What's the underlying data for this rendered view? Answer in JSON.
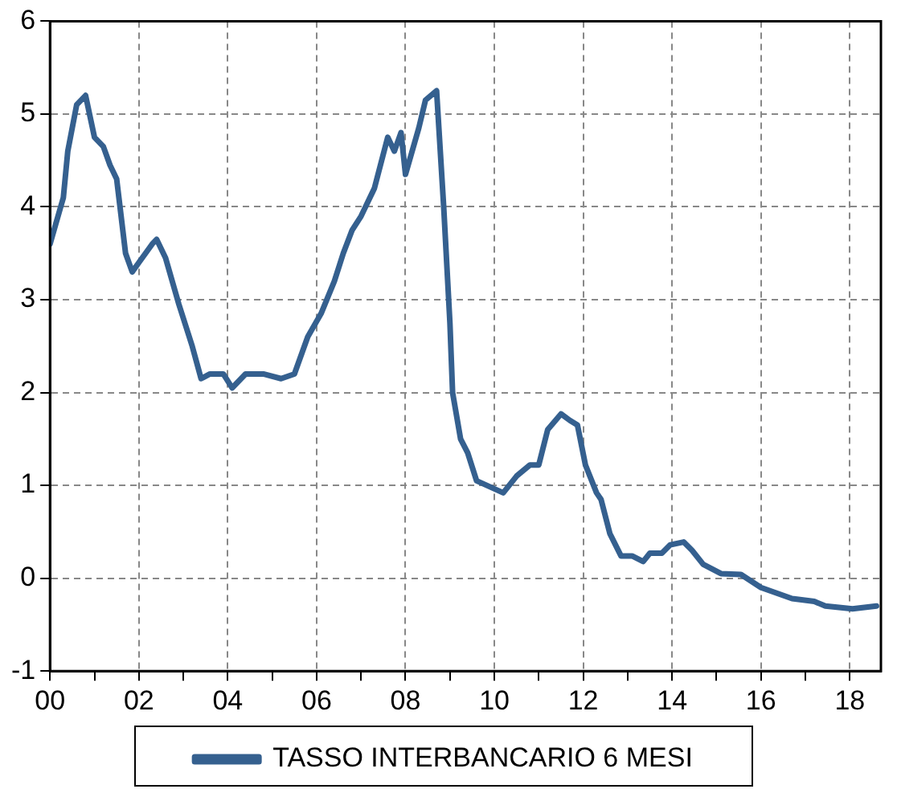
{
  "chart_data": {
    "type": "line",
    "x": [
      2000.0,
      2000.3,
      2000.4,
      2000.6,
      2000.8,
      2001.0,
      2001.2,
      2001.35,
      2001.5,
      2001.7,
      2001.85,
      2002.0,
      2002.3,
      2002.4,
      2002.6,
      2002.9,
      2003.2,
      2003.4,
      2003.6,
      2003.9,
      2004.1,
      2004.4,
      2004.8,
      2005.2,
      2005.5,
      2005.8,
      2006.1,
      2006.4,
      2006.6,
      2006.8,
      2007.0,
      2007.3,
      2007.6,
      2007.75,
      2007.9,
      2008.0,
      2008.3,
      2008.45,
      2008.7,
      2008.86,
      2009.0,
      2009.06,
      2009.24,
      2009.4,
      2009.6,
      2010.2,
      2010.5,
      2010.8,
      2011.0,
      2011.2,
      2011.5,
      2011.7,
      2011.87,
      2012.05,
      2012.3,
      2012.4,
      2012.6,
      2012.85,
      2013.1,
      2013.35,
      2013.5,
      2013.77,
      2013.96,
      2014.26,
      2014.45,
      2014.7,
      2015.1,
      2015.55,
      2016.0,
      2016.7,
      2017.2,
      2017.45,
      2018.06,
      2018.6
    ],
    "series": [
      {
        "name": "TASSO INTERBANCARIO 6 MESI",
        "color": "#35608f",
        "values": [
          3.6,
          4.1,
          4.6,
          5.1,
          5.2,
          4.75,
          4.65,
          4.45,
          4.3,
          3.5,
          3.3,
          3.4,
          3.6,
          3.65,
          3.45,
          2.95,
          2.5,
          2.15,
          2.2,
          2.2,
          2.05,
          2.2,
          2.2,
          2.15,
          2.2,
          2.6,
          2.85,
          3.2,
          3.5,
          3.75,
          3.9,
          4.2,
          4.75,
          4.6,
          4.8,
          4.35,
          4.85,
          5.15,
          5.25,
          4.0,
          2.75,
          2.0,
          1.5,
          1.35,
          1.05,
          0.92,
          1.1,
          1.22,
          1.22,
          1.6,
          1.77,
          1.7,
          1.65,
          1.22,
          0.92,
          0.85,
          0.48,
          0.24,
          0.24,
          0.18,
          0.27,
          0.27,
          0.36,
          0.39,
          0.3,
          0.15,
          0.05,
          0.04,
          -0.1,
          -0.22,
          -0.25,
          -0.3,
          -0.33,
          -0.3
        ]
      }
    ],
    "xlim": [
      2000,
      2018.7
    ],
    "xticks": [
      {
        "value": 2000,
        "label": "00"
      },
      {
        "value": 2001,
        "label": null
      },
      {
        "value": 2002,
        "label": "02"
      },
      {
        "value": 2003,
        "label": null
      },
      {
        "value": 2004,
        "label": "04"
      },
      {
        "value": 2005,
        "label": null
      },
      {
        "value": 2006,
        "label": "06"
      },
      {
        "value": 2007,
        "label": null
      },
      {
        "value": 2008,
        "label": "08"
      },
      {
        "value": 2009,
        "label": null
      },
      {
        "value": 2010,
        "label": "10"
      },
      {
        "value": 2011,
        "label": null
      },
      {
        "value": 2012,
        "label": "12"
      },
      {
        "value": 2013,
        "label": null
      },
      {
        "value": 2014,
        "label": "14"
      },
      {
        "value": 2015,
        "label": null
      },
      {
        "value": 2016,
        "label": "16"
      },
      {
        "value": 2017,
        "label": null
      },
      {
        "value": 2018,
        "label": "18"
      }
    ],
    "ylim": [
      -1,
      6
    ],
    "yticks": [
      -1,
      0,
      1,
      2,
      3,
      4,
      5,
      6
    ],
    "grid": true,
    "legend": "bottom",
    "marker": "none",
    "line_style": "solid"
  }
}
